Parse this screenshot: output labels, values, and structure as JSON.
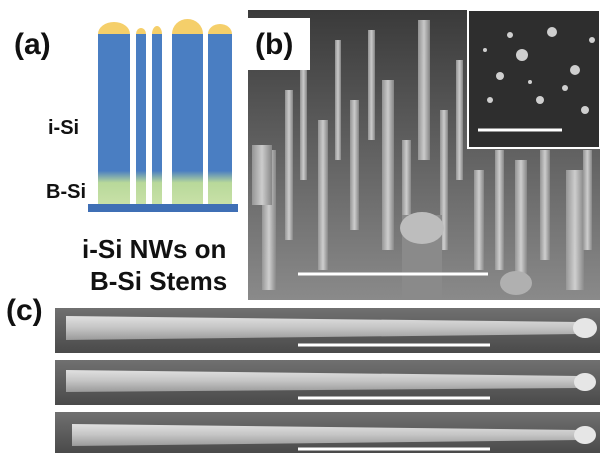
{
  "panel_a": {
    "label": "(a)",
    "layer_top": "i-Si",
    "layer_bottom": "B-Si",
    "caption_line1": "i-Si NWs on",
    "caption_line2": "B-Si Stems"
  },
  "panel_b": {
    "label": "(b)"
  },
  "panel_c": {
    "label": "(c)"
  }
}
